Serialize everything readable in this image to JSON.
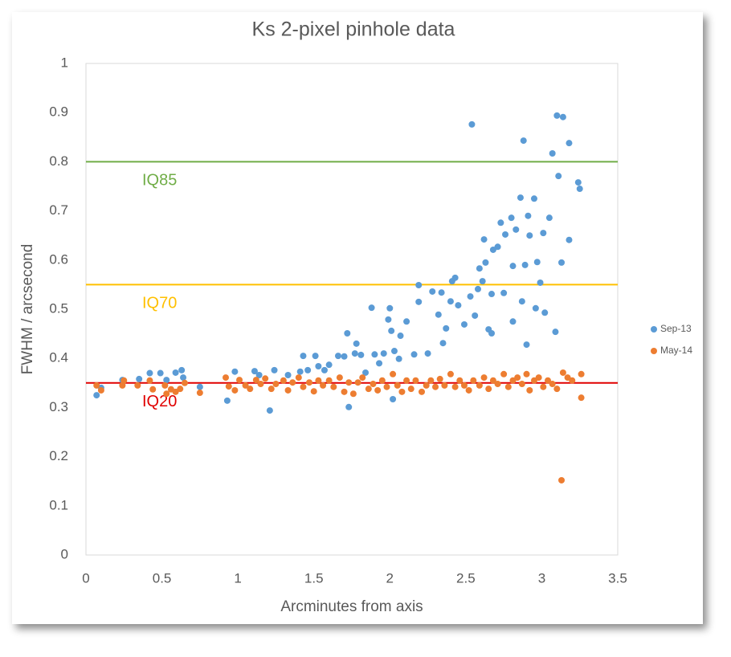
{
  "chart_data": {
    "type": "scatter",
    "title": "Ks 2-pixel pinhole data",
    "x_label": "Arcminutes from axis",
    "y_label": "FWHM / arcsecond",
    "xlim": [
      0,
      3.5
    ],
    "xticks": [
      0,
      0.5,
      1,
      1.5,
      2,
      2.5,
      3,
      3.5
    ],
    "ylim": [
      0,
      1
    ],
    "yticks": [
      0,
      0.1,
      0.2,
      0.3,
      0.4,
      0.5,
      0.6,
      0.7,
      0.8,
      0.9,
      1
    ],
    "legend": "right",
    "reference_lines": [
      {
        "label": "IQ85",
        "value": 0.8,
        "color": "#70ad47"
      },
      {
        "label": "IQ70",
        "value": 0.55,
        "color": "#ffc000"
      },
      {
        "label": "IQ20",
        "value": 0.35,
        "color": "#e00000"
      }
    ],
    "series": [
      {
        "name": "Sep-13",
        "color": "#5b9bd5",
        "x": [
          0.07,
          0.1,
          0.24,
          0.35,
          0.42,
          0.49,
          0.53,
          0.59,
          0.63,
          0.64,
          0.75,
          0.93,
          0.98,
          1.11,
          1.14,
          1.21,
          1.24,
          1.33,
          1.41,
          1.43,
          1.46,
          1.51,
          1.53,
          1.57,
          1.6,
          1.66,
          1.7,
          1.72,
          1.73,
          1.77,
          1.78,
          1.81,
          1.84,
          1.88,
          1.9,
          1.93,
          1.96,
          1.99,
          2.0,
          2.01,
          2.02,
          2.03,
          2.06,
          2.07,
          2.11,
          2.16,
          2.19,
          2.19,
          2.25,
          2.28,
          2.32,
          2.34,
          2.35,
          2.37,
          2.4,
          2.41,
          2.43,
          2.45,
          2.49,
          2.53,
          2.54,
          2.56,
          2.58,
          2.59,
          2.61,
          2.62,
          2.63,
          2.65,
          2.67,
          2.67,
          2.68,
          2.71,
          2.73,
          2.75,
          2.76,
          2.8,
          2.81,
          2.81,
          2.83,
          2.86,
          2.87,
          2.88,
          2.89,
          2.9,
          2.91,
          2.92,
          2.95,
          2.96,
          2.97,
          2.99,
          3.01,
          3.02,
          3.05,
          3.07,
          3.09,
          3.1,
          3.11,
          3.13,
          3.14,
          3.18,
          3.18,
          3.24,
          3.25
        ],
        "values": [
          0.325,
          0.34,
          0.356,
          0.358,
          0.37,
          0.37,
          0.356,
          0.371,
          0.376,
          0.361,
          0.342,
          0.314,
          0.373,
          0.374,
          0.366,
          0.294,
          0.376,
          0.366,
          0.373,
          0.405,
          0.376,
          0.405,
          0.384,
          0.376,
          0.387,
          0.405,
          0.404,
          0.451,
          0.301,
          0.41,
          0.43,
          0.407,
          0.371,
          0.503,
          0.408,
          0.39,
          0.41,
          0.479,
          0.502,
          0.456,
          0.317,
          0.415,
          0.399,
          0.446,
          0.475,
          0.408,
          0.515,
          0.549,
          0.41,
          0.536,
          0.489,
          0.534,
          0.431,
          0.461,
          0.516,
          0.557,
          0.564,
          0.508,
          0.469,
          0.526,
          0.876,
          0.487,
          0.541,
          0.583,
          0.557,
          0.642,
          0.595,
          0.459,
          0.531,
          0.451,
          0.621,
          0.627,
          0.676,
          0.533,
          0.652,
          0.686,
          0.588,
          0.475,
          0.662,
          0.727,
          0.516,
          0.843,
          0.59,
          0.428,
          0.69,
          0.65,
          0.725,
          0.502,
          0.596,
          0.554,
          0.655,
          0.493,
          0.686,
          0.817,
          0.454,
          0.894,
          0.771,
          0.595,
          0.891,
          0.838,
          0.641,
          0.758,
          0.745
        ]
      },
      {
        "name": "May-14",
        "color": "#ed7d31",
        "x": [
          0.07,
          0.1,
          0.24,
          0.25,
          0.34,
          0.42,
          0.44,
          0.52,
          0.53,
          0.56,
          0.59,
          0.62,
          0.65,
          0.75,
          0.92,
          0.94,
          0.98,
          1.01,
          1.05,
          1.08,
          1.12,
          1.15,
          1.18,
          1.22,
          1.25,
          1.3,
          1.33,
          1.36,
          1.4,
          1.43,
          1.47,
          1.5,
          1.53,
          1.56,
          1.6,
          1.63,
          1.67,
          1.7,
          1.73,
          1.76,
          1.79,
          1.82,
          1.86,
          1.89,
          1.92,
          1.95,
          1.98,
          2.02,
          2.05,
          2.08,
          2.11,
          2.14,
          2.17,
          2.21,
          2.24,
          2.27,
          2.3,
          2.33,
          2.36,
          2.4,
          2.43,
          2.46,
          2.49,
          2.52,
          2.55,
          2.59,
          2.62,
          2.65,
          2.68,
          2.71,
          2.75,
          2.78,
          2.81,
          2.84,
          2.87,
          2.9,
          2.92,
          2.95,
          2.98,
          3.01,
          3.04,
          3.07,
          3.1,
          3.13,
          3.14,
          3.17,
          3.2,
          3.26,
          3.26
        ],
        "values": [
          0.345,
          0.335,
          0.345,
          0.355,
          0.345,
          0.355,
          0.337,
          0.345,
          0.328,
          0.337,
          0.332,
          0.338,
          0.35,
          0.33,
          0.361,
          0.343,
          0.335,
          0.356,
          0.345,
          0.338,
          0.356,
          0.348,
          0.359,
          0.338,
          0.348,
          0.355,
          0.335,
          0.351,
          0.361,
          0.342,
          0.351,
          0.333,
          0.355,
          0.345,
          0.355,
          0.342,
          0.361,
          0.332,
          0.351,
          0.328,
          0.351,
          0.361,
          0.338,
          0.348,
          0.335,
          0.355,
          0.342,
          0.368,
          0.345,
          0.332,
          0.355,
          0.338,
          0.355,
          0.332,
          0.345,
          0.355,
          0.342,
          0.358,
          0.345,
          0.368,
          0.342,
          0.355,
          0.345,
          0.335,
          0.355,
          0.345,
          0.361,
          0.338,
          0.355,
          0.348,
          0.368,
          0.342,
          0.355,
          0.361,
          0.348,
          0.368,
          0.335,
          0.355,
          0.361,
          0.342,
          0.355,
          0.348,
          0.338,
          0.152,
          0.371,
          0.361,
          0.355,
          0.368,
          0.32
        ]
      }
    ]
  }
}
